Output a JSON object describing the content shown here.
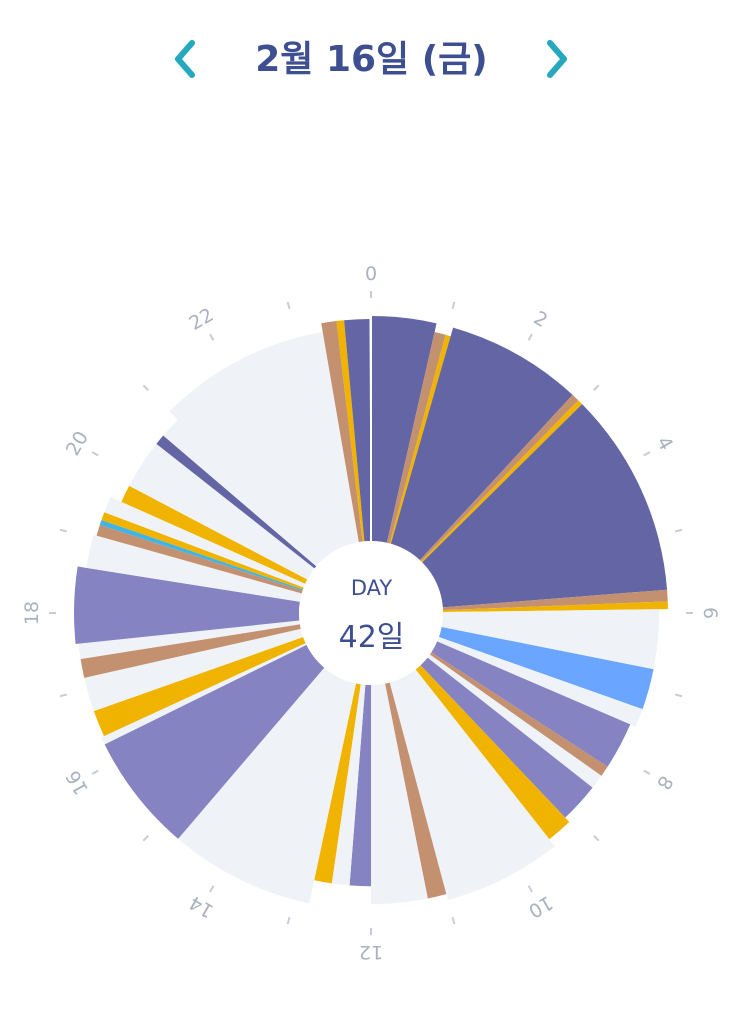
{
  "header": {
    "date": "2월 16일 (금)",
    "prev_icon": "chevron-left-icon",
    "next_icon": "chevron-right-icon",
    "accent_color": "#26a9be"
  },
  "center": {
    "label": "DAY",
    "value": "42일"
  },
  "chart_data": {
    "type": "pie",
    "angular_axis": {
      "min_hours": 0,
      "max_hours": 24,
      "tick_labels": [
        "0",
        "2",
        "4",
        "6",
        "8",
        "10",
        "12",
        "14",
        "16",
        "18",
        "20",
        "22"
      ]
    },
    "colors": {
      "sleep": "#6465a4",
      "feed": "#8583c2",
      "pump": "#c39170",
      "diaper": "#f0b400",
      "play": "#6aa6ff",
      "bath": "#42b4e4",
      "empty": "#eff3f7"
    },
    "slices": [
      {
        "start": 0.0,
        "end": 0.85,
        "kind": "sleep",
        "r": 1.0
      },
      {
        "start": 0.85,
        "end": 1.0,
        "kind": "pump",
        "r": 0.97
      },
      {
        "start": 1.0,
        "end": 1.07,
        "kind": "diaper",
        "r": 0.97
      },
      {
        "start": 1.07,
        "end": 2.85,
        "kind": "sleep",
        "r": 1.0
      },
      {
        "start": 2.85,
        "end": 2.95,
        "kind": "pump",
        "r": 1.0
      },
      {
        "start": 2.95,
        "end": 3.02,
        "kind": "diaper",
        "r": 1.0
      },
      {
        "start": 3.02,
        "end": 5.7,
        "kind": "sleep",
        "r": 1.0
      },
      {
        "start": 5.7,
        "end": 5.85,
        "kind": "pump",
        "r": 1.0
      },
      {
        "start": 5.85,
        "end": 5.95,
        "kind": "diaper",
        "r": 1.0
      },
      {
        "start": 5.95,
        "end": 6.75,
        "kind": "empty",
        "r": 0.97
      },
      {
        "start": 6.75,
        "end": 7.3,
        "kind": "play",
        "r": 0.97
      },
      {
        "start": 7.3,
        "end": 7.55,
        "kind": "empty",
        "r": 0.97
      },
      {
        "start": 7.55,
        "end": 8.2,
        "kind": "feed",
        "r": 0.95
      },
      {
        "start": 8.2,
        "end": 8.35,
        "kind": "pump",
        "r": 0.95
      },
      {
        "start": 8.35,
        "end": 8.55,
        "kind": "empty",
        "r": 0.95
      },
      {
        "start": 8.55,
        "end": 9.1,
        "kind": "feed",
        "r": 0.95
      },
      {
        "start": 9.1,
        "end": 9.45,
        "kind": "diaper",
        "r": 0.97
      },
      {
        "start": 9.45,
        "end": 11.0,
        "kind": "empty",
        "r": 1.0
      },
      {
        "start": 11.0,
        "end": 11.25,
        "kind": "pump",
        "r": 0.98
      },
      {
        "start": 11.25,
        "end": 12.0,
        "kind": "empty",
        "r": 0.98
      },
      {
        "start": 12.0,
        "end": 12.3,
        "kind": "feed",
        "r": 0.92
      },
      {
        "start": 12.3,
        "end": 12.55,
        "kind": "empty",
        "r": 0.92
      },
      {
        "start": 12.55,
        "end": 12.8,
        "kind": "diaper",
        "r": 0.92
      },
      {
        "start": 12.8,
        "end": 14.7,
        "kind": "empty",
        "r": 1.0
      },
      {
        "start": 14.7,
        "end": 16.25,
        "kind": "feed",
        "r": 1.0
      },
      {
        "start": 16.25,
        "end": 16.35,
        "kind": "empty",
        "r": 1.0
      },
      {
        "start": 16.35,
        "end": 16.7,
        "kind": "diaper",
        "r": 0.99
      },
      {
        "start": 16.7,
        "end": 17.15,
        "kind": "empty",
        "r": 0.99
      },
      {
        "start": 17.15,
        "end": 17.4,
        "kind": "pump",
        "r": 0.99
      },
      {
        "start": 17.4,
        "end": 17.6,
        "kind": "empty",
        "r": 0.99
      },
      {
        "start": 17.6,
        "end": 18.6,
        "kind": "feed",
        "r": 1.0
      },
      {
        "start": 18.6,
        "end": 19.05,
        "kind": "empty",
        "r": 0.97
      },
      {
        "start": 19.05,
        "end": 19.2,
        "kind": "pump",
        "r": 0.96
      },
      {
        "start": 19.2,
        "end": 19.27,
        "kind": "bath",
        "r": 0.96
      },
      {
        "start": 19.27,
        "end": 19.38,
        "kind": "diaper",
        "r": 0.96
      },
      {
        "start": 19.38,
        "end": 19.6,
        "kind": "empty",
        "r": 0.96
      },
      {
        "start": 19.6,
        "end": 19.85,
        "kind": "diaper",
        "r": 0.92
      },
      {
        "start": 19.85,
        "end": 20.55,
        "kind": "empty",
        "r": 0.92
      },
      {
        "start": 20.55,
        "end": 20.7,
        "kind": "sleep",
        "r": 0.92
      },
      {
        "start": 20.7,
        "end": 21.0,
        "kind": "empty",
        "r": 0.92
      },
      {
        "start": 21.0,
        "end": 23.35,
        "kind": "empty",
        "r": 0.96
      },
      {
        "start": 23.35,
        "end": 23.55,
        "kind": "pump",
        "r": 0.99
      },
      {
        "start": 23.55,
        "end": 23.65,
        "kind": "diaper",
        "r": 0.99
      },
      {
        "start": 23.65,
        "end": 23.98,
        "kind": "sleep",
        "r": 0.99
      }
    ]
  }
}
